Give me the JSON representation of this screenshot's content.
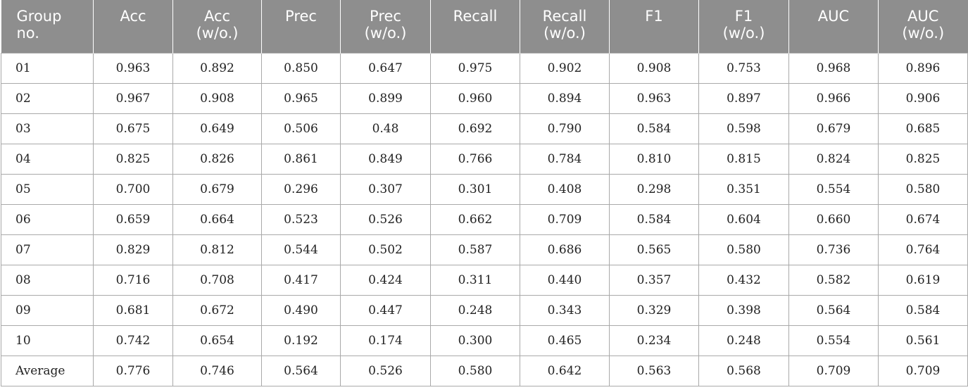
{
  "table": {
    "headers": [
      [
        "Group",
        "no."
      ],
      [
        "Acc"
      ],
      [
        "Acc",
        "(w/o.)"
      ],
      [
        "Prec"
      ],
      [
        "Prec",
        "(w/o.)"
      ],
      [
        "Recall"
      ],
      [
        "Recall",
        "(w/o.)"
      ],
      [
        "F1"
      ],
      [
        "F1",
        "(w/o.)"
      ],
      [
        "AUC"
      ],
      [
        "AUC",
        "(w/o.)"
      ]
    ],
    "rows": [
      [
        "01",
        "0.963",
        "0.892",
        "0.850",
        "0.647",
        "0.975",
        "0.902",
        "0.908",
        "0.753",
        "0.968",
        "0.896"
      ],
      [
        "02",
        "0.967",
        "0.908",
        "0.965",
        "0.899",
        "0.960",
        "0.894",
        "0.963",
        "0.897",
        "0.966",
        "0.906"
      ],
      [
        "03",
        "0.675",
        "0.649",
        "0.506",
        "0.48",
        "0.692",
        "0.790",
        "0.584",
        "0.598",
        "0.679",
        "0.685"
      ],
      [
        "04",
        "0.825",
        "0.826",
        "0.861",
        "0.849",
        "0.766",
        "0.784",
        "0.810",
        "0.815",
        "0.824",
        "0.825"
      ],
      [
        "05",
        "0.700",
        "0.679",
        "0.296",
        "0.307",
        "0.301",
        "0.408",
        "0.298",
        "0.351",
        "0.554",
        "0.580"
      ],
      [
        "06",
        "0.659",
        "0.664",
        "0.523",
        "0.526",
        "0.662",
        "0.709",
        "0.584",
        "0.604",
        "0.660",
        "0.674"
      ],
      [
        "07",
        "0.829",
        "0.812",
        "0.544",
        "0.502",
        "0.587",
        "0.686",
        "0.565",
        "0.580",
        "0.736",
        "0.764"
      ],
      [
        "08",
        "0.716",
        "0.708",
        "0.417",
        "0.424",
        "0.311",
        "0.440",
        "0.357",
        "0.432",
        "0.582",
        "0.619"
      ],
      [
        "09",
        "0.681",
        "0.672",
        "0.490",
        "0.447",
        "0.248",
        "0.343",
        "0.329",
        "0.398",
        "0.564",
        "0.584"
      ],
      [
        "10",
        "0.742",
        "0.654",
        "0.192",
        "0.174",
        "0.300",
        "0.465",
        "0.234",
        "0.248",
        "0.554",
        "0.561"
      ],
      [
        "Average",
        "0.776",
        "0.746",
        "0.564",
        "0.526",
        "0.580",
        "0.642",
        "0.563",
        "0.568",
        "0.709",
        "0.709"
      ]
    ]
  },
  "colors": {
    "header_bg": "#8e8e8e",
    "header_text": "#ffffff",
    "border": "#a9a9a9",
    "cell_text": "#222222"
  }
}
